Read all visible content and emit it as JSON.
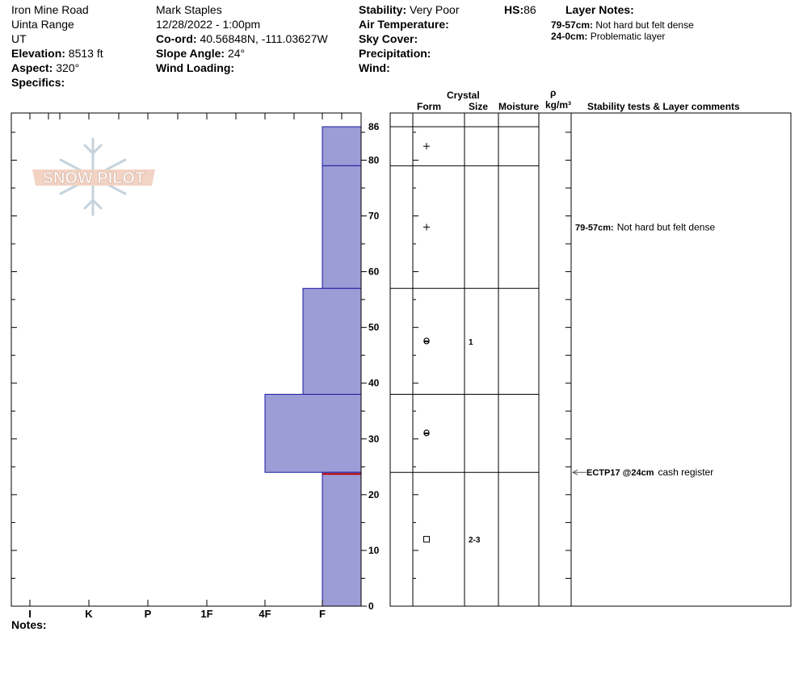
{
  "header": {
    "col1": [
      {
        "label": "",
        "value": "Iron Mine Road"
      },
      {
        "label": "",
        "value": "Uinta Range"
      },
      {
        "label": "",
        "value": "UT"
      },
      {
        "label": "Elevation:",
        "value": "8513 ft"
      },
      {
        "label": "Aspect:",
        "value": "320°"
      },
      {
        "label": "Specifics:",
        "value": ""
      }
    ],
    "col2": [
      {
        "label": "",
        "value": "Mark Staples"
      },
      {
        "label": "",
        "value": "12/28/2022 - 1:00pm"
      },
      {
        "label": "Co-ord:",
        "value": "40.56848N, -111.03627W"
      },
      {
        "label": "Slope Angle:",
        "value": "24°"
      },
      {
        "label": "Wind Loading:",
        "value": ""
      }
    ],
    "col3": [
      {
        "label": "Stability:",
        "value": "Very Poor"
      },
      {
        "label": "Air Temperature:",
        "value": ""
      },
      {
        "label": "Sky Cover:",
        "value": ""
      },
      {
        "label": "Precipitation:",
        "value": ""
      },
      {
        "label": "Wind:",
        "value": ""
      }
    ],
    "hs_label": "HS:",
    "hs_value": "86",
    "layer_notes_title": "Layer Notes:",
    "layer_notes": [
      {
        "range": "79-57cm:",
        "text": "Not hard but felt dense"
      },
      {
        "range": "24-0cm:",
        "text": "Problematic layer"
      }
    ]
  },
  "logo_text": "SNOW PILOT",
  "notes_label": "Notes:",
  "table_headers": {
    "crystal": "Crystal",
    "form": "Form",
    "size": "Size",
    "moisture": "Moisture",
    "rho": "ρ",
    "density_unit": "kg/m³",
    "stability": "Stability tests & Layer comments"
  },
  "colors": {
    "hardness_fill": "#9c9cd6",
    "hardness_stroke": "#1a1aa0",
    "weak_layer": "#c00000",
    "test_arrow": "#555555"
  },
  "chart_data": {
    "type": "bar",
    "orientation": "horizontal-stepped",
    "xlabel": "",
    "ylabel": "",
    "hardness_scale": [
      "I",
      "K",
      "P",
      "1F",
      "4F",
      "F"
    ],
    "ylim": [
      0,
      86
    ],
    "y_ticks": [
      0,
      10,
      20,
      30,
      40,
      50,
      60,
      70,
      80,
      86
    ],
    "layers": [
      {
        "top": 86,
        "bottom": 79,
        "hardness": "F",
        "form": "+",
        "size": ""
      },
      {
        "top": 79,
        "bottom": 57,
        "hardness": "F",
        "form": "+",
        "size": ""
      },
      {
        "top": 57,
        "bottom": 38,
        "hardness": "F+",
        "form": "rounded-facet",
        "size": "1"
      },
      {
        "top": 38,
        "bottom": 24,
        "hardness": "4F",
        "form": "rounded-facet",
        "size": ""
      },
      {
        "top": 24,
        "bottom": 0,
        "hardness": "F",
        "form": "□",
        "size": "2-3"
      }
    ],
    "weak_layer_depth": 24,
    "layer_comments": [
      {
        "depth": 68,
        "range": "79-57cm:",
        "text": "Not hard but felt dense"
      }
    ],
    "stability_tests": [
      {
        "depth": 24,
        "test": "ECTP17 @24cm",
        "comment": "cash register"
      }
    ]
  }
}
